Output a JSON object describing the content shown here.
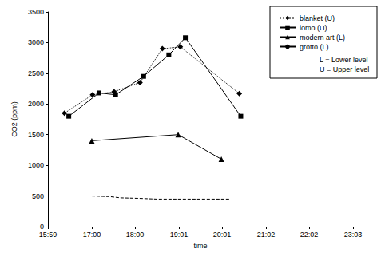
{
  "chart_data": {
    "type": "line",
    "x_label": "time",
    "y_label": "CO2 (ppm)",
    "xlim": [
      959,
      1383
    ],
    "xticks": [
      {
        "value": 959,
        "label": "15:59"
      },
      {
        "value": 1020,
        "label": "17:00"
      },
      {
        "value": 1080,
        "label": "18:00"
      },
      {
        "value": 1141,
        "label": "19:01"
      },
      {
        "value": 1201,
        "label": "20:01"
      },
      {
        "value": 1262,
        "label": "21:02"
      },
      {
        "value": 1322,
        "label": "22:02"
      },
      {
        "value": 1383,
        "label": "23:03"
      }
    ],
    "ylim": [
      0,
      3500
    ],
    "yticks": [
      0,
      500,
      1000,
      1500,
      2000,
      2500,
      3000,
      3500
    ],
    "grid": false,
    "legend": "upper right",
    "annotations": [
      "L = Lower level",
      "U = Upper level"
    ],
    "series": [
      {
        "name": "blanket (U)",
        "color": "#000000",
        "marker": "diamond",
        "line_style": "dotted",
        "x": [
          982,
          1021,
          1051,
          1087,
          1118,
          1143,
          1225
        ],
        "values": [
          1850,
          2150,
          2200,
          2350,
          2900,
          2930,
          2170
        ]
      },
      {
        "name": "iomo (U)",
        "color": "#000000",
        "marker": "square",
        "line_style": "solid",
        "x": [
          988,
          1030,
          1053,
          1092,
          1127,
          1150,
          1227
        ],
        "values": [
          1800,
          2180,
          2150,
          2450,
          2800,
          3080,
          1800
        ]
      },
      {
        "name": "modern art (L)",
        "color": "#000000",
        "marker": "triangle",
        "line_style": "solid",
        "x": [
          1020,
          1140,
          1200
        ],
        "values": [
          1400,
          1500,
          1100
        ]
      },
      {
        "name": "grotto (L)",
        "color": "#000000",
        "marker": "none",
        "line_style": "dashed",
        "x": [
          1020,
          1045,
          1060,
          1090,
          1110,
          1213
        ],
        "values": [
          500,
          490,
          470,
          460,
          450,
          450
        ]
      }
    ]
  }
}
